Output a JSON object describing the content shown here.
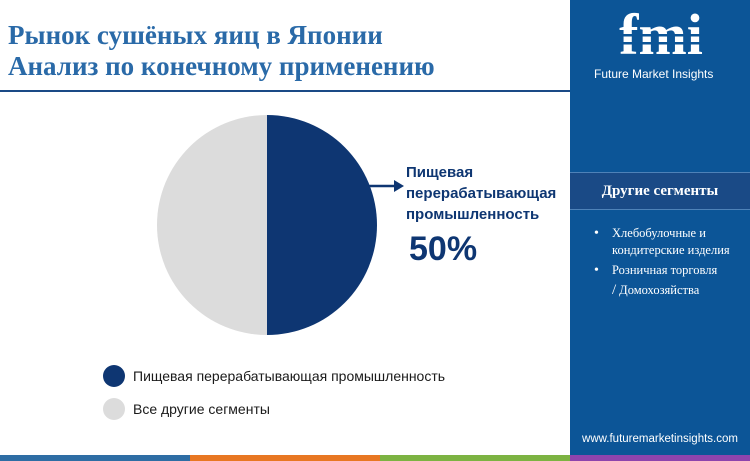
{
  "title": {
    "line1": "Рынок сушёных яиц в Японии",
    "line2": "Анализ по конечному применению"
  },
  "chart_data": {
    "type": "pie",
    "slices": [
      {
        "name": "Пищевая перерабатывающая промышленность",
        "value": 50,
        "color": "#0e3672"
      },
      {
        "name": "Все другие сегменты",
        "value": 50,
        "color": "#dcdcdc"
      }
    ],
    "callout": {
      "label": "Пищевая перерабатывающая промышленность",
      "value": "50%"
    },
    "legend": [
      {
        "label": "Пищевая перерабатывающая промышленность",
        "color": "#0e3672"
      },
      {
        "label": "Все другие сегменты",
        "color": "#dcdcdc"
      }
    ]
  },
  "sidebar": {
    "logo_text": "fmi",
    "brand": "Future Market Insights",
    "other_segments_title": "Другие сегменты",
    "other_segments": [
      "Хлебобулочные и кондитерские изделия",
      "Розничная торговля",
      "Домохозяйства"
    ],
    "website": "www.futuremarketinsights.com"
  },
  "colors": {
    "accent": "#0e3672",
    "title": "#2a6aa8",
    "sidebar": "#0c5597",
    "strip": [
      "#2e6da4",
      "#e87722",
      "#7cb342",
      "#8e44ad"
    ]
  }
}
